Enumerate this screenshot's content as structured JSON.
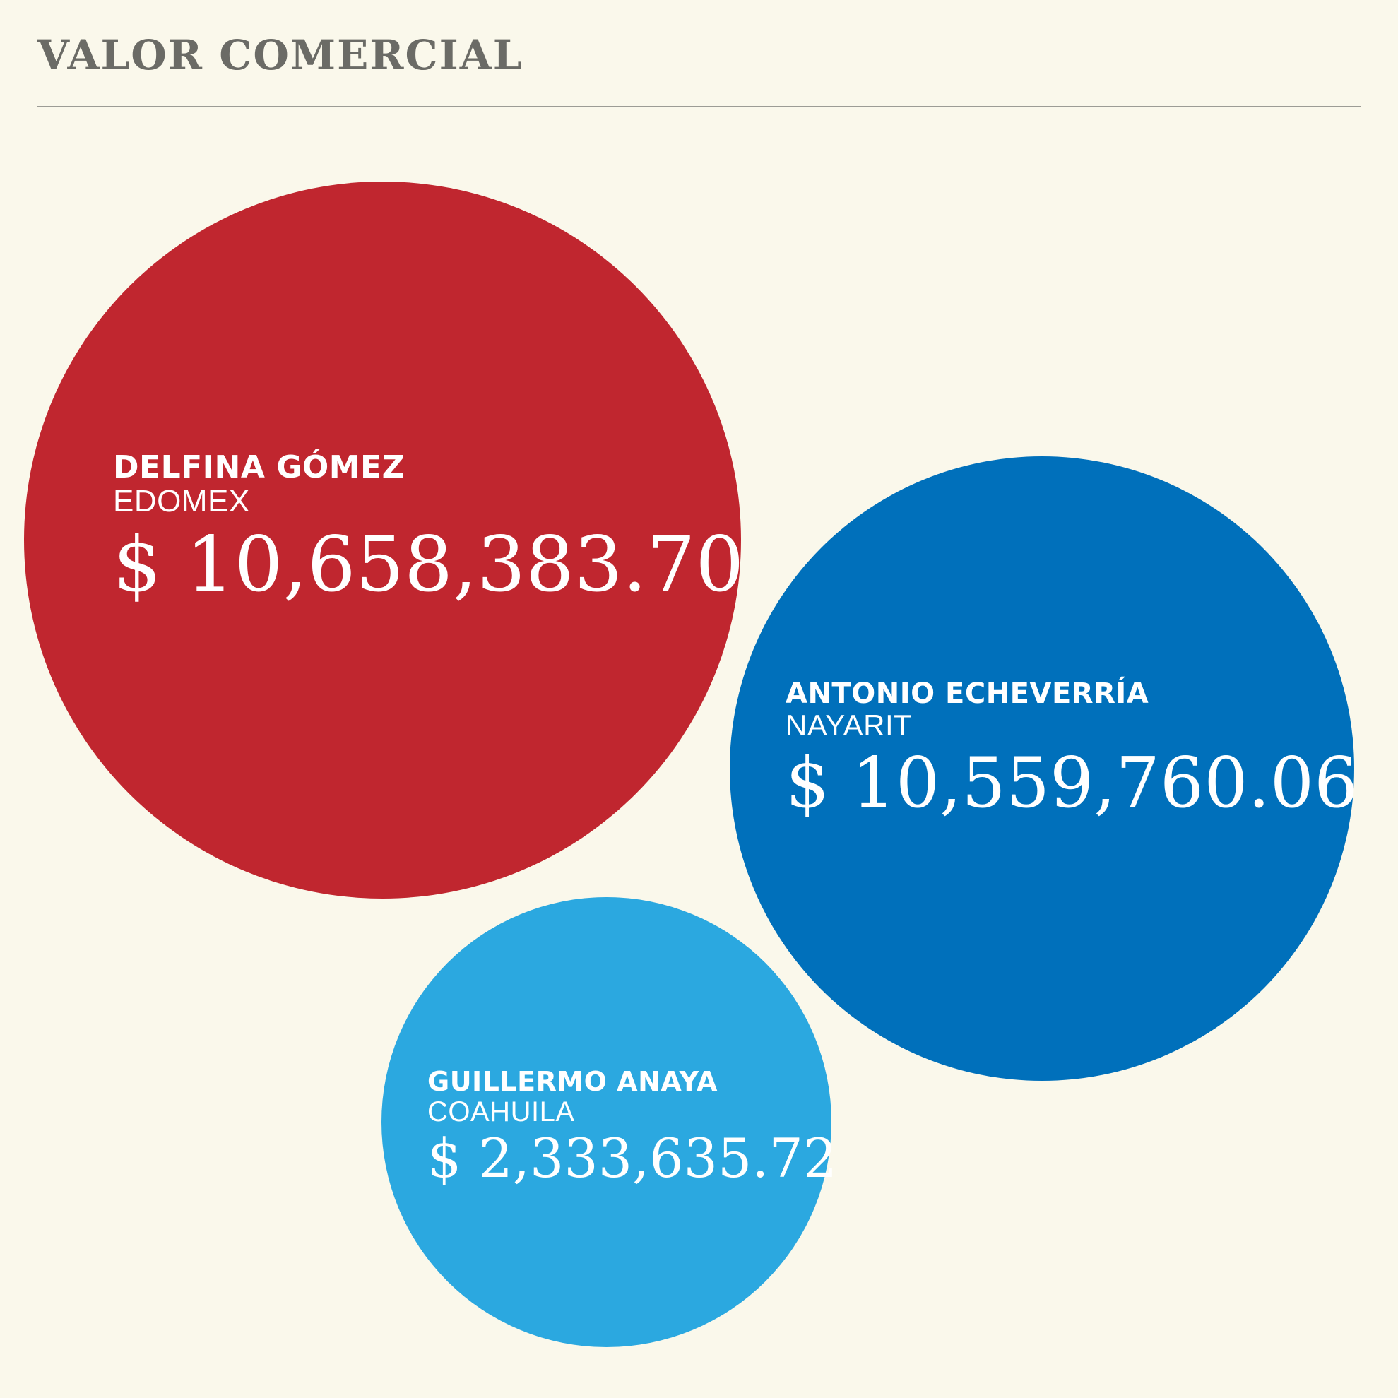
{
  "title": "VALOR COMERCIAL",
  "chart_data": {
    "type": "bubble",
    "title": "VALOR COMERCIAL",
    "series": [
      {
        "name": "DELFINA GÓMEZ",
        "state": "EDOMEX",
        "value": 10658383.7,
        "label": "$ 10,658,383.70",
        "color": "#c0262f"
      },
      {
        "name": "ANTONIO ECHEVERRÍA",
        "state": "NAYARIT",
        "value": 10559760.06,
        "label": "$ 10,559,760.06",
        "color": "#0070bb"
      },
      {
        "name": "GUILLERMO ANAYA",
        "state": "COAHUILA",
        "value": 2333635.72,
        "label": "$ 2,333,635.72",
        "color": "#2ba8e0"
      }
    ]
  }
}
